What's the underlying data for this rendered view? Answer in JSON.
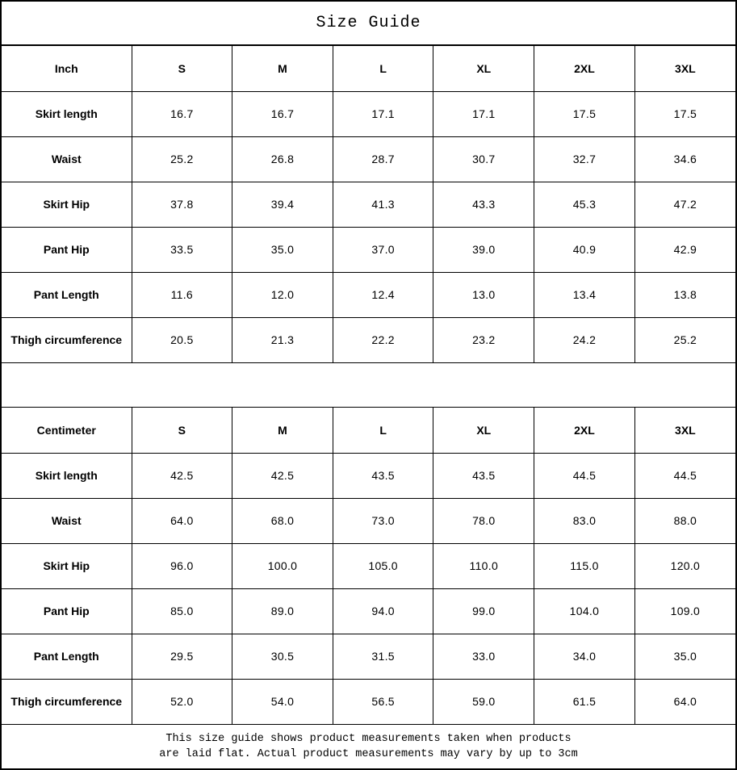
{
  "title": "Size Guide",
  "inch_table": {
    "unit_label": "Inch",
    "columns": [
      "S",
      "M",
      "L",
      "XL",
      "2XL",
      "3XL"
    ],
    "rows": [
      {
        "label": "Skirt length",
        "values": [
          "16.7",
          "16.7",
          "17.1",
          "17.1",
          "17.5",
          "17.5"
        ]
      },
      {
        "label": "Waist",
        "values": [
          "25.2",
          "26.8",
          "28.7",
          "30.7",
          "32.7",
          "34.6"
        ]
      },
      {
        "label": "Skirt Hip",
        "values": [
          "37.8",
          "39.4",
          "41.3",
          "43.3",
          "45.3",
          "47.2"
        ]
      },
      {
        "label": "Pant Hip",
        "values": [
          "33.5",
          "35.0",
          "37.0",
          "39.0",
          "40.9",
          "42.9"
        ]
      },
      {
        "label": "Pant Length",
        "values": [
          "11.6",
          "12.0",
          "12.4",
          "13.0",
          "13.4",
          "13.8"
        ]
      },
      {
        "label": "Thigh circumference",
        "values": [
          "20.5",
          "21.3",
          "22.2",
          "23.2",
          "24.2",
          "25.2"
        ]
      }
    ]
  },
  "cm_table": {
    "unit_label": "Centimeter",
    "columns": [
      "S",
      "M",
      "L",
      "XL",
      "2XL",
      "3XL"
    ],
    "rows": [
      {
        "label": "Skirt length",
        "values": [
          "42.5",
          "42.5",
          "43.5",
          "43.5",
          "44.5",
          "44.5"
        ]
      },
      {
        "label": "Waist",
        "values": [
          "64.0",
          "68.0",
          "73.0",
          "78.0",
          "83.0",
          "88.0"
        ]
      },
      {
        "label": "Skirt Hip",
        "values": [
          "96.0",
          "100.0",
          "105.0",
          "110.0",
          "115.0",
          "120.0"
        ]
      },
      {
        "label": "Pant Hip",
        "values": [
          "85.0",
          "89.0",
          "94.0",
          "99.0",
          "104.0",
          "109.0"
        ]
      },
      {
        "label": "Pant Length",
        "values": [
          "29.5",
          "30.5",
          "31.5",
          "33.0",
          "34.0",
          "35.0"
        ]
      },
      {
        "label": "Thigh circumference",
        "values": [
          "52.0",
          "54.0",
          "56.5",
          "59.0",
          "61.5",
          "64.0"
        ]
      }
    ]
  },
  "footer": {
    "line1": "This size guide shows product measurements taken when products",
    "line2": "are laid flat. Actual product measurements may vary by up to 3cm"
  },
  "colors": {
    "background": "#ffffff",
    "border": "#000000",
    "text": "#000000"
  }
}
